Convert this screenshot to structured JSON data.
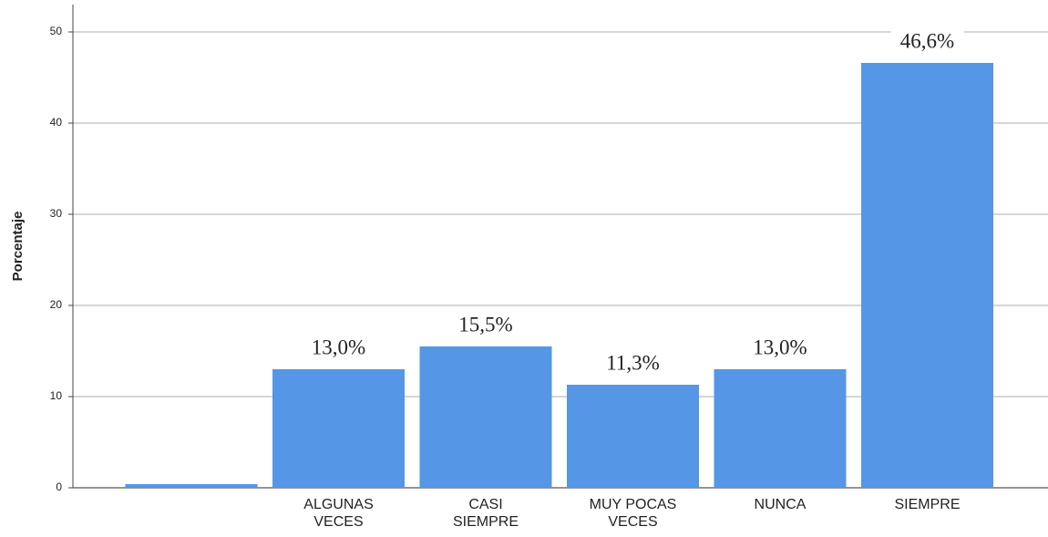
{
  "chart_data": {
    "type": "bar",
    "y_axis_label": "Porcentaje",
    "categories": [
      null,
      "ALGUNAS VECES",
      "CASI SIEMPRE",
      "MUY POCAS VECES",
      "NUNCA",
      "SIEMPRE"
    ],
    "values": [
      0.4,
      13.0,
      15.5,
      11.3,
      13.0,
      46.6
    ],
    "value_labels": [
      null,
      "13,0%",
      "15,5%",
      "11,3%",
      "13,0%",
      "46,6%"
    ],
    "color": "#5596e6",
    "ylim": [
      0,
      53
    ],
    "yticks": [
      0,
      10,
      20,
      30,
      40,
      50
    ],
    "grid": true
  }
}
